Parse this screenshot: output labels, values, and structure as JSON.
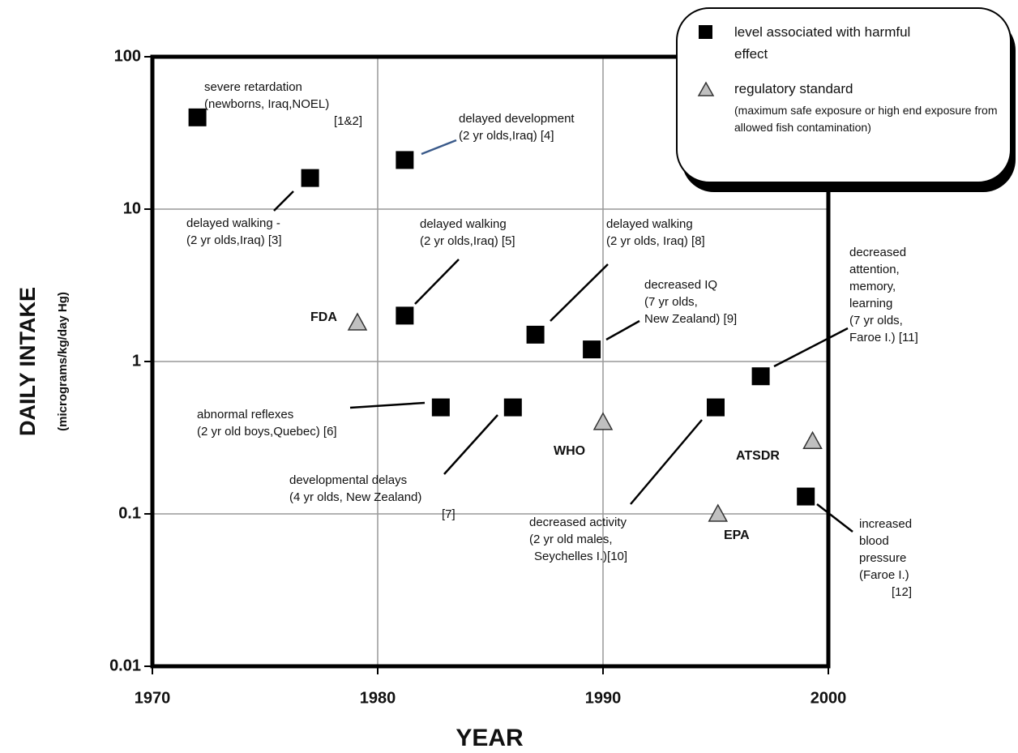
{
  "chart_data": {
    "type": "scatter",
    "xlabel": "YEAR",
    "ylabel": "DAILY INTAKE",
    "ylabel_sub": "(micrograms/kg/day Hg)",
    "xlim": [
      1970,
      2000
    ],
    "ylim": [
      0.01,
      100
    ],
    "xticks": [
      1970,
      1980,
      1990,
      2000
    ],
    "yticks": [
      0.01,
      0.1,
      1,
      10,
      100
    ],
    "log_y": true,
    "grid": true,
    "legend": "upper right",
    "series": [
      {
        "name": "level associated with harmful effect",
        "marker": "square",
        "color": "#000000",
        "x": [
          1972,
          1977,
          1981.2,
          1981.2,
          1982.8,
          1986,
          1987,
          1989.5,
          1995,
          1997,
          1999
        ],
        "values": [
          40,
          16,
          21,
          2,
          0.5,
          0.5,
          1.5,
          1.2,
          0.5,
          0.8,
          0.13
        ],
        "labels": [
          [
            "severe  retardation",
            "(newborns, Iraq,NOEL)",
            "[1&2]"
          ],
          [
            "delayed walking -",
            "(2 yr olds,Iraq) [3]"
          ],
          [
            "delayed development",
            "(2 yr olds,Iraq) [4]"
          ],
          [
            "delayed walking",
            "(2 yr olds,Iraq) [5]"
          ],
          [
            "abnormal reflexes",
            "(2 yr old boys,Quebec) [6]"
          ],
          [
            "developmental delays",
            "(4 yr olds, New Zealand)",
            "[7]"
          ],
          [
            "delayed walking",
            "(2 yr olds, Iraq) [8]"
          ],
          [
            "decreased IQ",
            "(7 yr olds,",
            "New Zealand) [9]"
          ],
          [
            "decreased activity",
            "(2 yr old males,",
            "Seychelles I.)[10]"
          ],
          [
            "decreased",
            "attention,",
            "memory,",
            "learning",
            "(7 yr olds,",
            "Faroe I.) [11]"
          ],
          [
            "increased",
            "blood",
            "pressure",
            "(Faroe I.)",
            "[12]"
          ]
        ]
      },
      {
        "name": "regulatory standard",
        "note": "(maximum safe exposure or high end exposure from allowed fish contamination)",
        "marker": "triangle",
        "color": "#c0c0c0",
        "x": [
          1979.1,
          1990,
          1999.3,
          1995.1
        ],
        "values": [
          1.8,
          0.4,
          0.3,
          0.1
        ],
        "labels": [
          "FDA",
          "WHO",
          "ATSDR",
          "EPA"
        ]
      }
    ]
  }
}
